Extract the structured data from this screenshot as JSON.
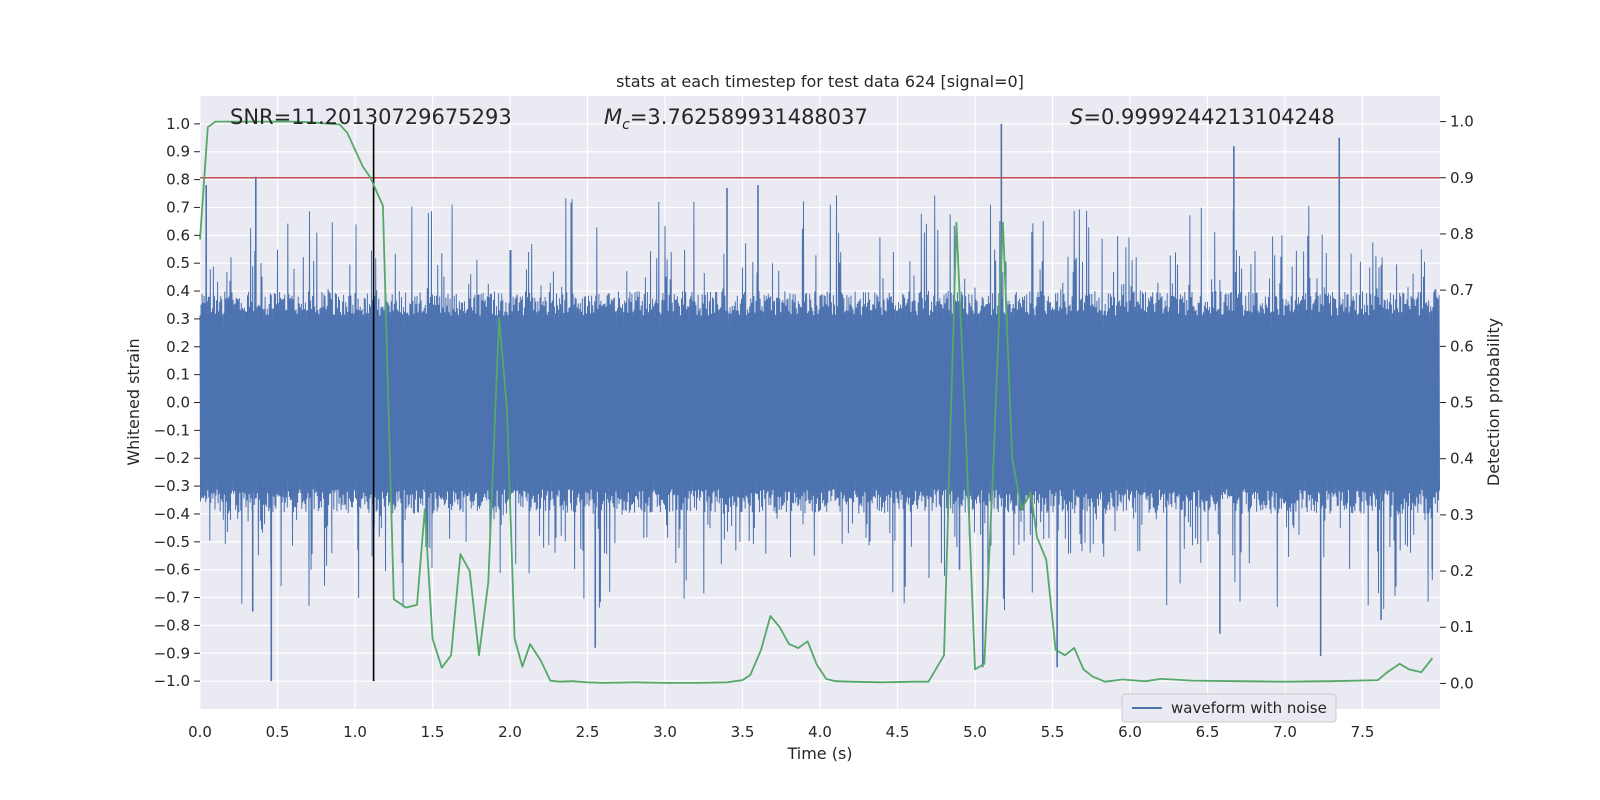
{
  "chart_data": {
    "type": "line",
    "title": "stats at each timestep for test data 624 [signal=0]",
    "xlabel": "Time (s)",
    "ylabel": "Whitened strain",
    "y2label": "Detection probability",
    "xlim": [
      0,
      8
    ],
    "ylim": [
      -1.1,
      1.1
    ],
    "y2lim": [
      -0.0455,
      1.0455
    ],
    "x_ticks": [
      0.0,
      0.5,
      1.0,
      1.5,
      2.0,
      2.5,
      3.0,
      3.5,
      4.0,
      4.5,
      5.0,
      5.5,
      6.0,
      6.5,
      7.0,
      7.5
    ],
    "x_tick_labels": [
      "0.0",
      "0.5",
      "1.0",
      "1.5",
      "2.0",
      "2.5",
      "3.0",
      "3.5",
      "4.0",
      "4.5",
      "5.0",
      "5.5",
      "6.0",
      "6.5",
      "7.0",
      "7.5"
    ],
    "y_ticks": [
      1.0,
      0.9,
      0.8,
      0.7,
      0.6,
      0.5,
      0.4,
      0.3,
      0.2,
      0.1,
      0.0,
      -0.1,
      -0.2,
      -0.3,
      -0.4,
      -0.5,
      -0.6,
      -0.7,
      -0.8,
      -0.9,
      -1.0
    ],
    "y_tick_labels": [
      "1.0",
      "0.9",
      "0.8",
      "0.7",
      "0.6",
      "0.5",
      "0.4",
      "0.3",
      "0.2",
      "0.1",
      "0.0",
      "−0.1",
      "−0.2",
      "−0.3",
      "−0.4",
      "−0.5",
      "−0.6",
      "−0.7",
      "−0.8",
      "−0.9",
      "−1.0"
    ],
    "y2_ticks": [
      1.0,
      0.9,
      0.8,
      0.7,
      0.6,
      0.5,
      0.4,
      0.3,
      0.2,
      0.1,
      0.0
    ],
    "y2_tick_labels": [
      "1.0",
      "0.9",
      "0.8",
      "0.7",
      "0.6",
      "0.5",
      "0.4",
      "0.3",
      "0.2",
      "0.1",
      "0.0"
    ],
    "grid": true,
    "background": "#eaeaf2",
    "annotations": {
      "snr": "SNR=11.20130729675293",
      "mc_symbol": "M",
      "mc_sub": "c",
      "mc_value": "=3.762589931488037",
      "s_symbol": "S",
      "s_value": "=0.9999244213104248"
    },
    "threshold": {
      "value": 0.9,
      "axis": "y2",
      "color": "#c44e52"
    },
    "vline": {
      "x": 1.12,
      "ymin": -1.0,
      "ymax": 1.0,
      "color": "#000000"
    },
    "legend": {
      "placement": "bottom-right",
      "label": "waveform with noise"
    },
    "series": [
      {
        "name": "waveform with noise",
        "axis": "y",
        "color": "#4c72b0",
        "style": "dense-noise",
        "typical_envelope": [
          -0.4,
          0.4
        ],
        "peaks": [
          {
            "x": 0.04,
            "y": 0.78
          },
          {
            "x": 0.36,
            "y": 0.81
          },
          {
            "x": 0.46,
            "y": -1.0
          },
          {
            "x": 0.34,
            "y": -0.75
          },
          {
            "x": 1.02,
            "y": -0.53
          },
          {
            "x": 2.55,
            "y": -0.88
          },
          {
            "x": 3.4,
            "y": 0.77
          },
          {
            "x": 3.6,
            "y": 0.78
          },
          {
            "x": 4.9,
            "y": -0.6
          },
          {
            "x": 5.17,
            "y": 1.0
          },
          {
            "x": 5.05,
            "y": -0.95
          },
          {
            "x": 5.53,
            "y": -0.95
          },
          {
            "x": 6.67,
            "y": 0.92
          },
          {
            "x": 6.58,
            "y": -0.83
          },
          {
            "x": 7.23,
            "y": -0.91
          },
          {
            "x": 7.35,
            "y": 0.95
          },
          {
            "x": 7.62,
            "y": -0.78
          },
          {
            "x": 7.95,
            "y": -0.6
          }
        ]
      },
      {
        "name": "",
        "axis": "y2",
        "color": "#55a868",
        "style": "line",
        "x": [
          0.0,
          0.05,
          0.1,
          0.2,
          0.3,
          0.5,
          0.6,
          0.7,
          0.8,
          0.9,
          0.95,
          1.0,
          1.05,
          1.1,
          1.18,
          1.25,
          1.33,
          1.4,
          1.45,
          1.5,
          1.56,
          1.62,
          1.68,
          1.74,
          1.8,
          1.86,
          1.93,
          1.98,
          2.03,
          2.08,
          2.13,
          2.2,
          2.26,
          2.32,
          2.4,
          2.5,
          2.6,
          2.8,
          3.0,
          3.2,
          3.4,
          3.5,
          3.55,
          3.62,
          3.68,
          3.74,
          3.8,
          3.86,
          3.92,
          3.98,
          4.04,
          4.1,
          4.2,
          4.4,
          4.6,
          4.7,
          4.8,
          4.88,
          4.94,
          5.0,
          5.06,
          5.12,
          5.18,
          5.24,
          5.3,
          5.36,
          5.4,
          5.46,
          5.52,
          5.58,
          5.64,
          5.7,
          5.76,
          5.84,
          5.95,
          6.1,
          6.2,
          6.4,
          6.7,
          7.0,
          7.3,
          7.6,
          7.66,
          7.74,
          7.8,
          7.88,
          7.95
        ],
        "y": [
          0.79,
          0.99,
          1.0,
          1.0,
          1.0,
          1.0,
          1.0,
          0.999,
          0.997,
          0.995,
          0.98,
          0.95,
          0.92,
          0.9,
          0.85,
          0.15,
          0.135,
          0.14,
          0.31,
          0.08,
          0.028,
          0.05,
          0.23,
          0.2,
          0.05,
          0.18,
          0.65,
          0.49,
          0.08,
          0.03,
          0.07,
          0.04,
          0.005,
          0.003,
          0.004,
          0.002,
          0.001,
          0.002,
          0.001,
          0.001,
          0.002,
          0.006,
          0.015,
          0.06,
          0.12,
          0.1,
          0.07,
          0.063,
          0.075,
          0.033,
          0.008,
          0.004,
          0.003,
          0.002,
          0.003,
          0.003,
          0.05,
          0.82,
          0.45,
          0.025,
          0.035,
          0.4,
          0.82,
          0.4,
          0.31,
          0.34,
          0.26,
          0.22,
          0.06,
          0.05,
          0.063,
          0.025,
          0.012,
          0.003,
          0.007,
          0.004,
          0.008,
          0.005,
          0.004,
          0.003,
          0.004,
          0.006,
          0.02,
          0.035,
          0.025,
          0.02,
          0.045
        ]
      }
    ]
  }
}
